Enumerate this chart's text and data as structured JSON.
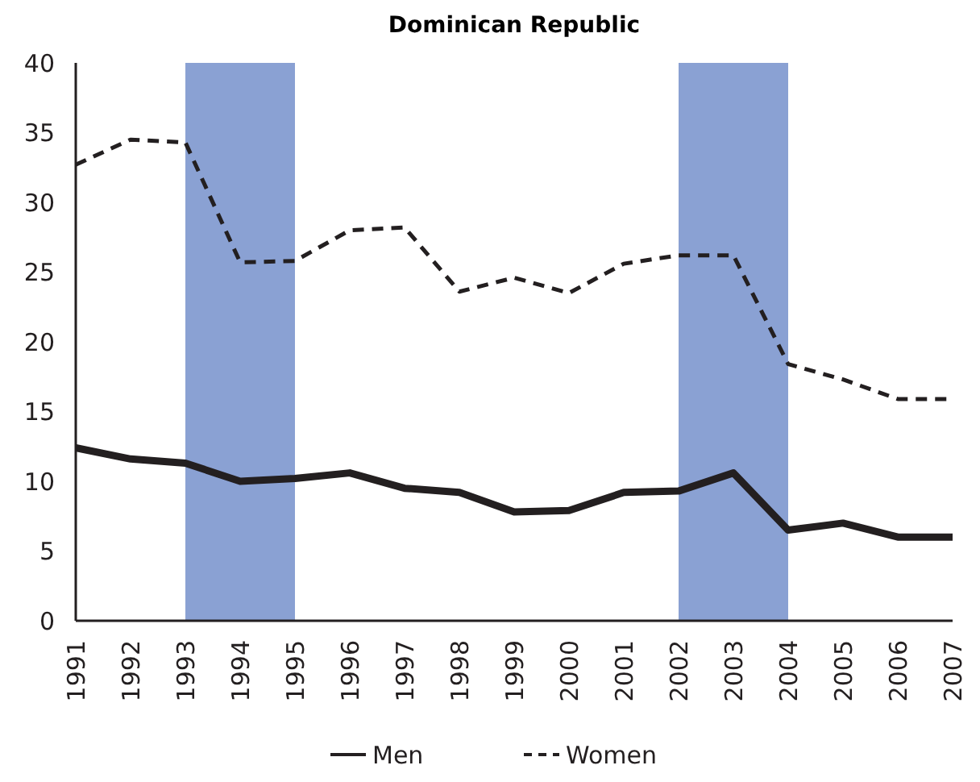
{
  "chart_data": {
    "type": "line",
    "title": "Dominican Republic",
    "categories": [
      "1991",
      "1992",
      "1993",
      "1994",
      "1995",
      "1996",
      "1997",
      "1998",
      "1999",
      "2000",
      "2001",
      "2002",
      "2003",
      "2004",
      "2005",
      "2006",
      "2007"
    ],
    "series": [
      {
        "name": "Men",
        "color": "#231f20",
        "line_style": "solid",
        "values": [
          12.4,
          11.6,
          11.3,
          10.0,
          10.2,
          10.6,
          9.5,
          9.2,
          7.8,
          7.9,
          9.2,
          9.3,
          10.6,
          6.5,
          7.0,
          6.0,
          6.0
        ]
      },
      {
        "name": "Women",
        "color": "#231f20",
        "line_style": "dashed",
        "values": [
          32.7,
          34.5,
          34.3,
          25.7,
          25.8,
          28.0,
          28.2,
          23.6,
          24.6,
          23.5,
          25.6,
          26.2,
          26.2,
          18.4,
          17.3,
          15.9,
          15.9
        ]
      }
    ],
    "ylim": [
      0,
      40
    ],
    "yticks": [
      0,
      5,
      10,
      15,
      20,
      25,
      30,
      35,
      40
    ],
    "grid": false,
    "legend": "bottom",
    "marker": "none",
    "bands": [
      {
        "axis": "x",
        "from": "1993",
        "to": "1995",
        "color": "#8aa1d3"
      },
      {
        "axis": "x",
        "from": "2002",
        "to": "2004",
        "color": "#8aa1d3"
      }
    ]
  }
}
